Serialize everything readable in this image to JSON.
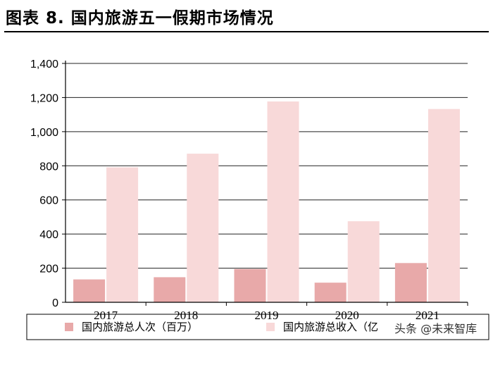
{
  "header": {
    "title": "图表 8. 国内旅游五一假期市场情况"
  },
  "watermark": {
    "text": "头条 @未来智库"
  },
  "chart_data": {
    "type": "bar",
    "categories": [
      "2017",
      "2018",
      "2019",
      "2020",
      "2021"
    ],
    "series": [
      {
        "name": "国内旅游总人次（百万）",
        "values": [
          134,
          147,
          195,
          115,
          230
        ],
        "color": "#e8a9a9"
      },
      {
        "name": "国内旅游总收入（亿",
        "values": [
          791,
          871,
          1177,
          475,
          1133
        ],
        "color": "#f8d9d9"
      }
    ],
    "yticks": [
      "0",
      "200",
      "400",
      "600",
      "800",
      "1,000",
      "1,200",
      "1,400"
    ],
    "ylim": [
      0,
      1400
    ],
    "grid": true,
    "legend_position": "bottom"
  }
}
